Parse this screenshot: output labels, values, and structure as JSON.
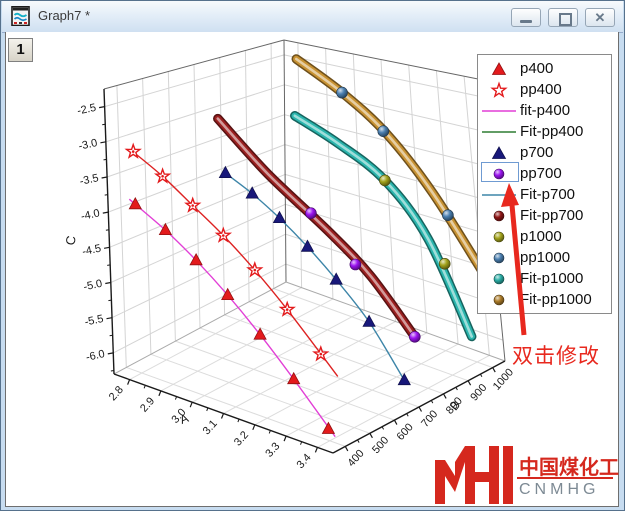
{
  "window": {
    "title": "Graph7 *",
    "icon": "graph-window-icon",
    "buttons": {
      "minimize": "minimize",
      "restore": "restore",
      "close": "close"
    }
  },
  "layer_badge": "1",
  "legend": {
    "selected_index": 5,
    "items": [
      {
        "label": "p400",
        "symbol": "triangle",
        "color": "#e31a1c"
      },
      {
        "label": "pp400",
        "symbol": "star",
        "color": "#e31a1c"
      },
      {
        "label": "fit-p400",
        "symbol": "line",
        "color": "#e23fd6"
      },
      {
        "label": "Fit-pp400",
        "symbol": "line",
        "color": "#2e7d32"
      },
      {
        "label": "p700",
        "symbol": "triangle",
        "color": "#18187a"
      },
      {
        "label": "pp700",
        "symbol": "sphere",
        "color": "#9b14f0"
      },
      {
        "label": "Fit-p700",
        "symbol": "line",
        "color": "#3d85a8"
      },
      {
        "label": "Fit-pp700",
        "symbol": "sphere",
        "color": "#8e1616"
      },
      {
        "label": "p1000",
        "symbol": "sphere",
        "color": "#a3a31c"
      },
      {
        "label": "pp1000",
        "symbol": "sphere",
        "color": "#4a7fb0"
      },
      {
        "label": "Fit-p1000",
        "symbol": "sphere",
        "color": "#2aada5"
      },
      {
        "label": "Fit-pp1000",
        "symbol": "sphere",
        "color": "#ab7b28"
      }
    ]
  },
  "annotation": {
    "text": "双击修改",
    "color": "#e8281e"
  },
  "watermark": {
    "logo": "MH",
    "line1": "中国煤化工",
    "line2": "CNMHG",
    "accent_color": "#d5281e",
    "sub_color": "#7d8a94"
  },
  "chart_data": {
    "type": "3d-scatter-with-fit-curves",
    "axes": {
      "A": {
        "label": "A",
        "min": 2.75,
        "max": 3.45,
        "tick_values": [
          2.8,
          2.9,
          3.0,
          3.1,
          3.2,
          3.3,
          3.4
        ],
        "tick_labels": [
          "2.8",
          "2.9",
          "3.0",
          "3.1",
          "3.2",
          "3.3",
          "3.4"
        ]
      },
      "B": {
        "label": "B",
        "min": 350,
        "max": 1050,
        "tick_values": [
          400,
          500,
          600,
          700,
          800,
          900,
          1000
        ],
        "tick_labels": [
          "400",
          "500",
          "600",
          "700",
          "800",
          "900",
          "1000"
        ]
      },
      "C": {
        "label": "C",
        "min": -6.3,
        "max": -2.25,
        "tick_values": [
          -2.5,
          -3.0,
          -3.5,
          -4.0,
          -4.5,
          -5.0,
          -5.5,
          -6.0
        ],
        "tick_labels": [
          "-2.5",
          "-3.0",
          "-3.5",
          "-4.0",
          "-4.5",
          "-5.0",
          "-5.5",
          "-6.0"
        ]
      }
    },
    "grid": true,
    "series": [
      {
        "name": "Fit-pp1000",
        "kind": "tube",
        "color": "#c89232",
        "B": 1000,
        "A": [
          2.84,
          3.0,
          3.15,
          3.3,
          3.47
        ],
        "C": [
          -2.42,
          -2.8,
          -3.27,
          -4.0,
          -5.1
        ]
      },
      {
        "name": "pp1000",
        "kind": "spheres",
        "color": "#4a7fb0",
        "B": 1000,
        "A": [
          3.0,
          3.14,
          3.345
        ],
        "C": [
          -2.8,
          -3.25,
          -4.26
        ]
      },
      {
        "name": "Fit-p1000",
        "kind": "tube",
        "color": "#2ab5ad",
        "B": 1000,
        "A": [
          2.83,
          2.98,
          3.135,
          3.27,
          3.39
        ],
        "C": [
          -3.35,
          -3.62,
          -4.0,
          -4.7,
          -5.95
        ]
      },
      {
        "name": "p1000",
        "kind": "spheres",
        "color": "#a3a31c",
        "B": 1000,
        "A": [
          3.135,
          3.32
        ],
        "C": [
          -4.0,
          -5.0
        ]
      },
      {
        "name": "Fit-pp700",
        "kind": "tube",
        "color": "#9c2020",
        "B": 700,
        "A": [
          2.83,
          3.0,
          3.2,
          3.33,
          3.46
        ],
        "C": [
          -3.0,
          -3.65,
          -4.25,
          -4.7,
          -5.35
        ]
      },
      {
        "name": "pp700",
        "kind": "spheres",
        "color": "#9b14f0",
        "B": 700,
        "A": [
          3.14,
          3.28,
          3.46
        ],
        "C": [
          -4.05,
          -4.6,
          -5.35
        ]
      },
      {
        "name": "Fit-p700",
        "kind": "line",
        "color": "#3d85a8",
        "B": 700,
        "A": [
          2.85,
          2.94,
          3.03,
          3.12,
          3.21,
          3.31,
          3.41
        ],
        "C": [
          -3.8,
          -4.0,
          -4.25,
          -4.55,
          -4.9,
          -5.35,
          -6.0
        ]
      },
      {
        "name": "p700",
        "kind": "triangles",
        "color": "#18187a",
        "B": 700,
        "A": [
          2.85,
          2.94,
          3.03,
          3.12,
          3.21,
          3.31,
          3.41
        ],
        "C": [
          -3.8,
          -4.0,
          -4.25,
          -4.55,
          -4.9,
          -5.35,
          -6.0
        ]
      },
      {
        "name": "Fit-pp400",
        "kind": "line",
        "color": "#dd2222",
        "B": 400,
        "A": [
          2.79,
          2.9,
          3.0,
          3.1,
          3.2,
          3.3,
          3.45
        ],
        "C": [
          -3.13,
          -3.4,
          -3.7,
          -4.0,
          -4.35,
          -4.75,
          -5.42
        ]
      },
      {
        "name": "pp400",
        "kind": "stars",
        "color": "#e31a1c",
        "B": 400,
        "A": [
          2.8,
          2.9,
          3.0,
          3.1,
          3.2,
          3.3,
          3.4
        ],
        "C": [
          -3.15,
          -3.4,
          -3.7,
          -4.0,
          -4.35,
          -4.75,
          -5.2
        ]
      },
      {
        "name": "fit-p400",
        "kind": "line",
        "color": "#e23fd6",
        "B": 400,
        "A": [
          2.78,
          2.9,
          3.0,
          3.1,
          3.2,
          3.3,
          3.42
        ],
        "C": [
          -3.85,
          -4.15,
          -4.45,
          -4.8,
          -5.2,
          -5.65,
          -6.22
        ]
      },
      {
        "name": "p400",
        "kind": "triangles",
        "color": "#e31a1c",
        "B": 400,
        "A": [
          2.8,
          2.9,
          3.0,
          3.1,
          3.2,
          3.3,
          3.4
        ],
        "C": [
          -3.9,
          -4.15,
          -4.45,
          -4.8,
          -5.2,
          -5.65,
          -6.15
        ]
      }
    ]
  }
}
